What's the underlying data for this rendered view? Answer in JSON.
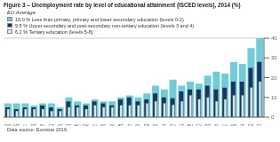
{
  "chart_data": {
    "type": "bar",
    "title": "Figure 3 – Unemployment rate by level of educational attainment (ISCED levels), 2014 (%)",
    "subtitle": "EU Average",
    "annotations": [
      "Data source: Eurostat 2016."
    ],
    "categories": [
      "RO",
      "MT",
      "LI",
      "DE",
      "NL",
      "CZ",
      "AT",
      "EE",
      "HU",
      "DK",
      "LV",
      "SE",
      "UK",
      "BE",
      "FI",
      "PL",
      "FR",
      "SK",
      "IE",
      "EU",
      "LT",
      "BU",
      "CY",
      "PT",
      "SI",
      "LU",
      "HR",
      "IT",
      "ES",
      "EL"
    ],
    "series": [
      {
        "name": "19.0 % Less than primary, primary and lower secondary education (levels 0-2)",
        "color": "#6ecdd8",
        "values": [
          7,
          7,
          7,
          6,
          7,
          7,
          5,
          10,
          8,
          7,
          9,
          8,
          8,
          10,
          11,
          10,
          12,
          16,
          14,
          19,
          16,
          18,
          17,
          21,
          23,
          22,
          28,
          27,
          35,
          40
        ]
      },
      {
        "name": "9.5 % Upper secondary and post-secondary non-tertiary education (levels 3 and 4)",
        "color": "#1d3461",
        "values": [
          5,
          4,
          5,
          5,
          6,
          5,
          4,
          8,
          6,
          6,
          8,
          7,
          6,
          9,
          10,
          8,
          9,
          12,
          10,
          9.5,
          13,
          14,
          14,
          16,
          14,
          15,
          18,
          18,
          25,
          28
        ]
      },
      {
        "name": "6.2 % Tertiary education (levels 5-8)",
        "color": "#dce8ec",
        "values": [
          4,
          3,
          4,
          4,
          4,
          3,
          3,
          5,
          5,
          4,
          6,
          5,
          5,
          6,
          6,
          6,
          7,
          8,
          7,
          6.2,
          8,
          11,
          9,
          10,
          8,
          9,
          11,
          11,
          15,
          18
        ]
      }
    ],
    "ylim": [
      0,
      40
    ],
    "yticks": [
      0,
      10,
      20,
      30,
      40
    ],
    "grid": true,
    "legend": "upper left"
  }
}
